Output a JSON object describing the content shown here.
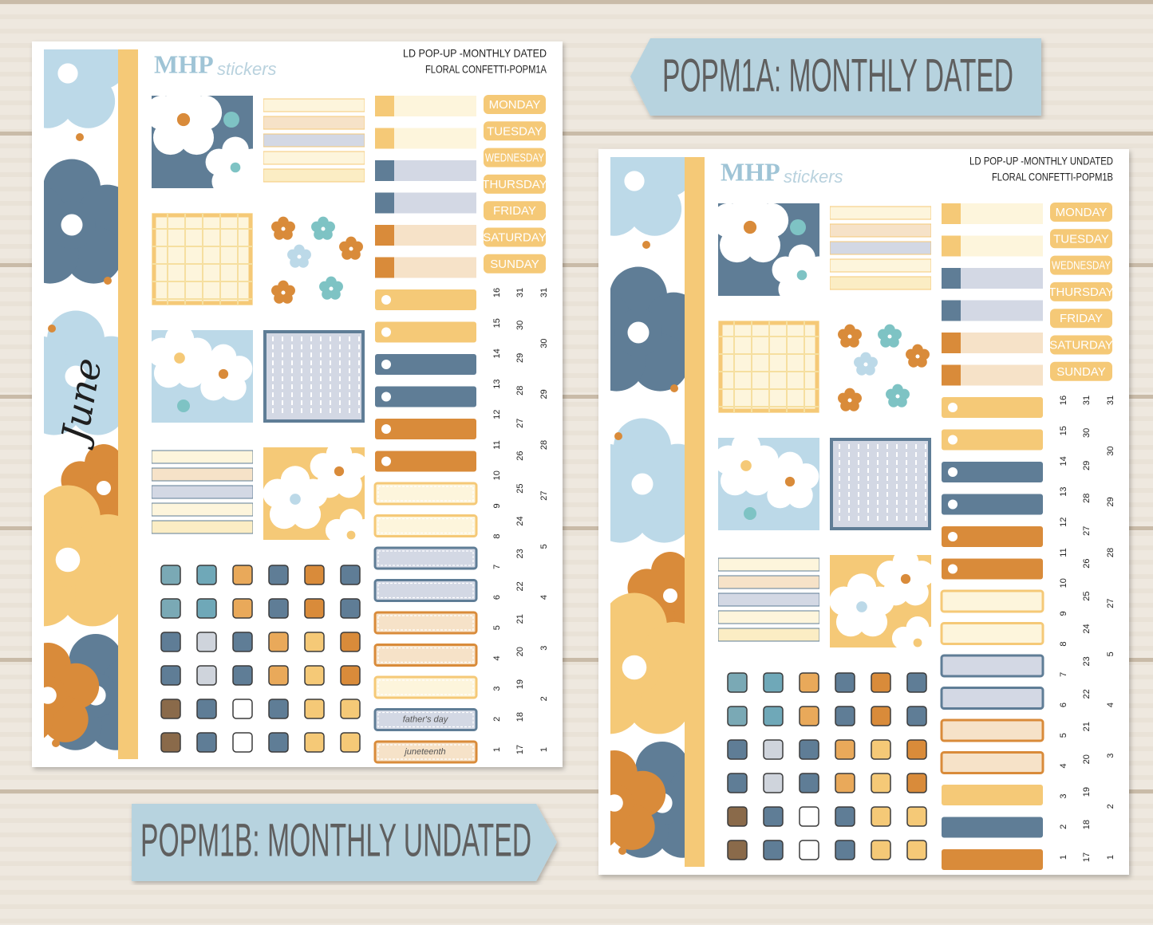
{
  "banners": {
    "top": "POPM1A: MONTHLY DATED",
    "bottom": "POPM1B: MONTHLY UNDATED"
  },
  "sheets": [
    {
      "brand": "MHP",
      "brand_script": "stickers",
      "title": [
        "LD POP-UP -MONTHLY DATED",
        "FLORAL CONFETTI-POPM1A"
      ],
      "month": "June",
      "weekdays": [
        "MONDAY",
        "TUESDAY",
        "WEDNESDAY",
        "THURSDAY",
        "FRIDAY",
        "SATURDAY",
        "SUNDAY"
      ],
      "labels": [
        "father's day",
        "juneteenth"
      ],
      "dates": [
        [
          16,
          15,
          14,
          13,
          12,
          11,
          10,
          9,
          8,
          7,
          6,
          5,
          4,
          3,
          2,
          1
        ],
        [
          31,
          30,
          29,
          28,
          27,
          26,
          25,
          24,
          23,
          22,
          21,
          20,
          19,
          18,
          17
        ],
        [
          31,
          30,
          29,
          28,
          27,
          5,
          4,
          3,
          2,
          1
        ]
      ]
    },
    {
      "brand": "MHP",
      "brand_script": "stickers",
      "title": [
        "LD POP-UP -MONTHLY UNDATED",
        "FLORAL CONFETTI-POPM1B"
      ],
      "weekdays": [
        "MONDAY",
        "TUESDAY",
        "WEDNESDAY",
        "THURSDAY",
        "FRIDAY",
        "SATURDAY",
        "SUNDAY"
      ],
      "dates": [
        [
          16,
          15,
          14,
          13,
          12,
          11,
          10,
          9,
          8,
          7,
          6,
          5,
          4,
          3,
          2,
          1
        ],
        [
          31,
          30,
          29,
          28,
          27,
          26,
          25,
          24,
          23,
          22,
          21,
          20,
          19,
          18,
          17
        ],
        [
          31,
          30,
          29,
          28,
          27,
          5,
          4,
          3,
          2,
          1
        ]
      ]
    }
  ]
}
